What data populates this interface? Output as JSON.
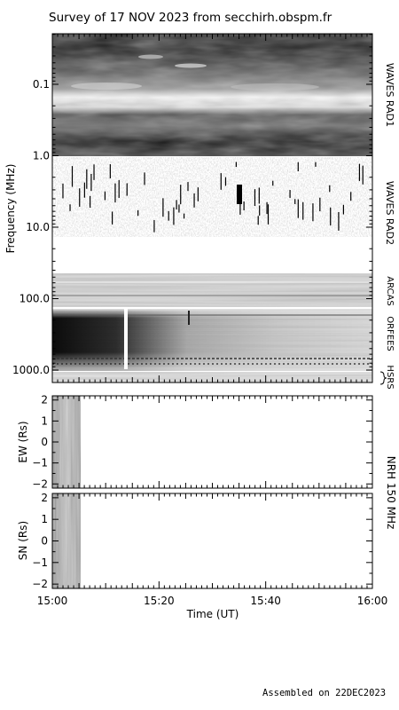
{
  "title": "Survey of 17 NOV 2023 from secchirh.obspm.fr",
  "footer": "Assembled on 22DEC2023",
  "chart_data": [
    {
      "type": "heatmap",
      "name": "dynamic-spectrum",
      "ylabel": "Frequency (MHz)",
      "yscale": "log",
      "ylim_mhz": [
        0.02,
        1500
      ],
      "yticks": [
        {
          "value": 0.1,
          "label": "0.1"
        },
        {
          "value": 1.0,
          "label": "1.0"
        },
        {
          "value": 10.0,
          "label": "10.0"
        },
        {
          "value": 100.0,
          "label": "100.0"
        },
        {
          "value": 1000.0,
          "label": "1000.0"
        }
      ],
      "bands": [
        {
          "label": "WAVES RAD1",
          "f_low_mhz": 0.02,
          "f_high_mhz": 1.0
        },
        {
          "label": "WAVES RAD2",
          "f_low_mhz": 1.0,
          "f_high_mhz": 13.0
        },
        {
          "label": "ARCAS",
          "f_low_mhz": 37,
          "f_high_mhz": 88
        },
        {
          "label": "ORFEES",
          "f_low_mhz": 140,
          "f_high_mhz": 1000
        },
        {
          "label": "HSRS",
          "f_low_mhz": 1000,
          "f_high_mhz": 1500
        }
      ],
      "xlim_ut": [
        "15:00",
        "16:00"
      ]
    },
    {
      "type": "heatmap",
      "name": "nrh-ew",
      "ylabel": "EW (Rs)",
      "ylim": [
        -2.2,
        2.2
      ],
      "yticks": [
        2,
        1,
        0,
        -1,
        -2
      ],
      "data_interval_ut": [
        "15:00",
        "15:05"
      ]
    },
    {
      "type": "heatmap",
      "name": "nrh-sn",
      "ylabel": "SN (Rs)",
      "ylim": [
        -2.2,
        2.2
      ],
      "yticks": [
        2,
        1,
        0,
        -1,
        -2
      ],
      "data_interval_ut": [
        "15:00",
        "15:05"
      ],
      "xlabel": "Time (UT)",
      "xticks": [
        "15:00",
        "15:20",
        "15:40",
        "16:00"
      ]
    }
  ],
  "nrh_label": "NRH 150 MHz",
  "colors": {
    "background": "#ffffff",
    "axis": "#000000"
  }
}
